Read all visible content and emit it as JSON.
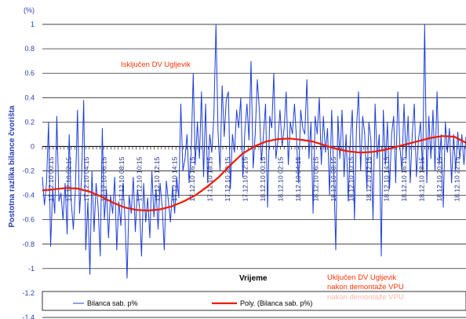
{
  "chart_data": {
    "type": "line",
    "unit": "(%)",
    "ylabel": "Postotna razlika bilance čvorišta",
    "xlabel": "Vrijeme",
    "ylim": [
      -1.4,
      1.0
    ],
    "yticks": [
      1,
      0.8,
      0.6,
      0.4,
      0.2,
      0,
      -0.2,
      -0.4,
      -0.6,
      -0.8,
      -1,
      -1.2,
      -1.4
    ],
    "grid": true,
    "legend_position": "bottom",
    "x_tick_labels": [
      "17.12.10 00:15",
      "17.12.10 02:15",
      "17.12.10 04:15",
      "17.12.10 06:15",
      "17.12.10 08:15",
      "17.12.10 10:15",
      "17.12.10 12:15",
      "17.12.10 14:15",
      "17.12.10 16:15",
      "17.12.10 18:15",
      "17.12.10 20:15",
      "17.12.10 22:15",
      "18.12.10 00:15",
      "18.12.10 02:15",
      "18.12.10 04:15",
      "18.12.10 06:15",
      "18.12.10 08:15",
      "18.12.10 10:15",
      "18.12.10 12:15",
      "18.12.10 14:15",
      "18.12.10 16:15",
      "18.12.10 18:15",
      "18.12.10 20:15",
      "18.12.10 22:15"
    ],
    "series": [
      {
        "name": "Bilanca sab. p%",
        "color": "#1f3fd8",
        "values": [
          -0.25,
          -0.48,
          -0.3,
          0.2,
          -0.82,
          -0.35,
          -0.55,
          0.25,
          -0.45,
          -0.38,
          -0.6,
          -0.3,
          -0.72,
          0.1,
          -0.46,
          -0.68,
          -0.35,
          0.3,
          -0.55,
          -0.25,
          0.38,
          -0.85,
          -0.45,
          -1.05,
          -0.2,
          -0.7,
          -0.3,
          -0.5,
          -0.9,
          0.15,
          -0.6,
          -0.35,
          -0.75,
          -0.4,
          -0.55,
          -0.25,
          -0.85,
          -0.45,
          -0.65,
          -0.3,
          -0.6,
          -1.08,
          -0.4,
          -0.55,
          -0.25,
          -0.7,
          -0.35,
          -0.5,
          -0.9,
          -0.3,
          -0.62,
          -0.42,
          -0.75,
          -0.2,
          -0.58,
          -0.35,
          -0.68,
          -0.3,
          -0.5,
          -0.85,
          -0.28,
          -0.45,
          -0.62,
          -0.32,
          -0.55,
          -0.25,
          -0.42,
          0.35,
          -0.2,
          -0.1,
          0.1,
          -0.3,
          -0.05,
          0.6,
          -0.15,
          0.2,
          -0.1,
          0.45,
          -0.25,
          0.35,
          -0.3,
          0.1,
          -0.05,
          0.25,
          1.0,
          0.12,
          -0.2,
          0.5,
          0.08,
          0.38,
          0.45,
          -0.35,
          0.1,
          -0.05,
          0.3,
          0.15,
          0.4,
          -0.25,
          0.12,
          0.35,
          0.05,
          0.7,
          -0.18,
          0.1,
          0.55,
          0.3,
          -0.12,
          0.1,
          0.35,
          -0.5,
          0.25,
          0.15,
          0.6,
          -0.1,
          0.05,
          0.3,
          0.0,
          0.15,
          0.45,
          -0.15,
          0.2,
          0.1,
          0.35,
          0.05,
          -0.3,
          0.3,
          0.15,
          0.1,
          0.55,
          -0.1,
          0.2,
          -0.55,
          0.25,
          0.1,
          0.4,
          -0.15,
          0.25,
          -0.05,
          0.15,
          -0.4,
          0.3,
          -0.2,
          -0.85,
          0.25,
          -0.1,
          0.3,
          -0.25,
          0.1,
          -0.45,
          0.05,
          0.3,
          -0.6,
          0.15,
          0.45,
          -0.2,
          0.25,
          0.1,
          -0.35,
          0.2,
          0.05,
          -0.6,
          0.35,
          -0.1,
          0.1,
          -0.9,
          0.3,
          -0.15,
          0.2,
          -0.35,
          0.1,
          0.25,
          -0.3,
          0.45,
          0.0,
          -0.2,
          0.35,
          -0.1,
          0.25,
          -0.3,
          0.1,
          0.35,
          -0.25,
          0.05,
          0.2,
          -0.2,
          1.0,
          -0.3,
          0.25,
          -0.1,
          0.3,
          -0.2,
          0.45,
          -0.15,
          0.1,
          -0.5,
          0.2,
          -0.05,
          0.15,
          -0.3,
          0.1,
          -0.2,
          0.12,
          -0.1,
          0.1,
          -0.15,
          0.08
        ]
      },
      {
        "name": "Poly. (Bilanca sab. p%)",
        "color": "#ee1b00",
        "values": [
          -0.36,
          -0.35,
          -0.34,
          -0.345,
          -0.37,
          -0.41,
          -0.46,
          -0.5,
          -0.52,
          -0.525,
          -0.515,
          -0.49,
          -0.45,
          -0.4,
          -0.33,
          -0.25,
          -0.15,
          -0.06,
          0.0,
          0.04,
          0.06,
          0.065,
          0.055,
          0.04,
          0.01,
          -0.02,
          -0.04,
          -0.05,
          -0.045,
          -0.03,
          -0.005,
          0.02,
          0.045,
          0.07,
          0.085,
          0.08,
          0.03
        ]
      }
    ],
    "annotations": [
      "Isključen DV Ugljevik",
      "Uključen DV Ugljevik",
      "nakon demontaže VPU",
      "nakon demontaže VPU"
    ]
  }
}
